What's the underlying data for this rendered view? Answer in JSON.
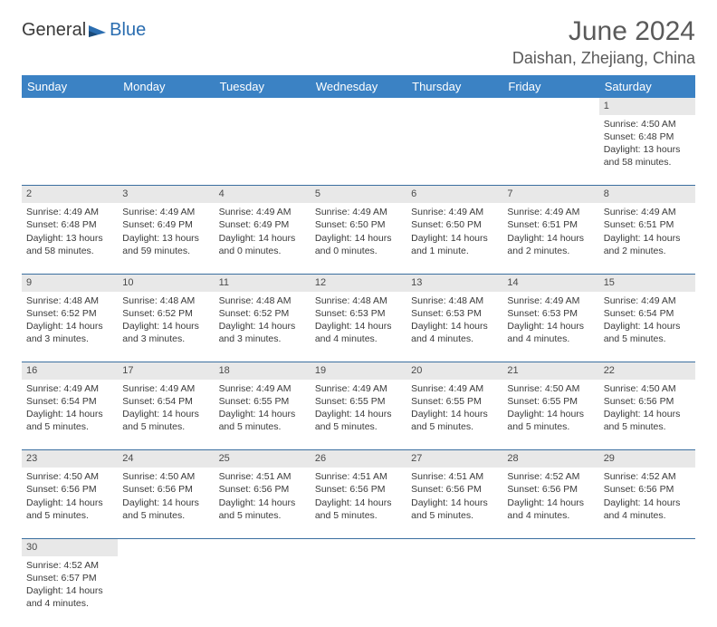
{
  "brand": {
    "name1": "General",
    "name2": "Blue"
  },
  "title": {
    "month_year": "June 2024",
    "location": "Daishan, Zhejiang, China"
  },
  "colors": {
    "header_bg": "#3b82c4",
    "header_text": "#ffffff",
    "daynum_bg": "#e8e8e8",
    "border": "#3b6fa0",
    "text": "#3a3a3a",
    "brand_blue": "#2a6db0"
  },
  "weekdays": [
    "Sunday",
    "Monday",
    "Tuesday",
    "Wednesday",
    "Thursday",
    "Friday",
    "Saturday"
  ],
  "weeks": [
    [
      null,
      null,
      null,
      null,
      null,
      null,
      {
        "n": "1",
        "sr": "4:50 AM",
        "ss": "6:48 PM",
        "dl": "13 hours and 58 minutes."
      }
    ],
    [
      {
        "n": "2",
        "sr": "4:49 AM",
        "ss": "6:48 PM",
        "dl": "13 hours and 58 minutes."
      },
      {
        "n": "3",
        "sr": "4:49 AM",
        "ss": "6:49 PM",
        "dl": "13 hours and 59 minutes."
      },
      {
        "n": "4",
        "sr": "4:49 AM",
        "ss": "6:49 PM",
        "dl": "14 hours and 0 minutes."
      },
      {
        "n": "5",
        "sr": "4:49 AM",
        "ss": "6:50 PM",
        "dl": "14 hours and 0 minutes."
      },
      {
        "n": "6",
        "sr": "4:49 AM",
        "ss": "6:50 PM",
        "dl": "14 hours and 1 minute."
      },
      {
        "n": "7",
        "sr": "4:49 AM",
        "ss": "6:51 PM",
        "dl": "14 hours and 2 minutes."
      },
      {
        "n": "8",
        "sr": "4:49 AM",
        "ss": "6:51 PM",
        "dl": "14 hours and 2 minutes."
      }
    ],
    [
      {
        "n": "9",
        "sr": "4:48 AM",
        "ss": "6:52 PM",
        "dl": "14 hours and 3 minutes."
      },
      {
        "n": "10",
        "sr": "4:48 AM",
        "ss": "6:52 PM",
        "dl": "14 hours and 3 minutes."
      },
      {
        "n": "11",
        "sr": "4:48 AM",
        "ss": "6:52 PM",
        "dl": "14 hours and 3 minutes."
      },
      {
        "n": "12",
        "sr": "4:48 AM",
        "ss": "6:53 PM",
        "dl": "14 hours and 4 minutes."
      },
      {
        "n": "13",
        "sr": "4:48 AM",
        "ss": "6:53 PM",
        "dl": "14 hours and 4 minutes."
      },
      {
        "n": "14",
        "sr": "4:49 AM",
        "ss": "6:53 PM",
        "dl": "14 hours and 4 minutes."
      },
      {
        "n": "15",
        "sr": "4:49 AM",
        "ss": "6:54 PM",
        "dl": "14 hours and 5 minutes."
      }
    ],
    [
      {
        "n": "16",
        "sr": "4:49 AM",
        "ss": "6:54 PM",
        "dl": "14 hours and 5 minutes."
      },
      {
        "n": "17",
        "sr": "4:49 AM",
        "ss": "6:54 PM",
        "dl": "14 hours and 5 minutes."
      },
      {
        "n": "18",
        "sr": "4:49 AM",
        "ss": "6:55 PM",
        "dl": "14 hours and 5 minutes."
      },
      {
        "n": "19",
        "sr": "4:49 AM",
        "ss": "6:55 PM",
        "dl": "14 hours and 5 minutes."
      },
      {
        "n": "20",
        "sr": "4:49 AM",
        "ss": "6:55 PM",
        "dl": "14 hours and 5 minutes."
      },
      {
        "n": "21",
        "sr": "4:50 AM",
        "ss": "6:55 PM",
        "dl": "14 hours and 5 minutes."
      },
      {
        "n": "22",
        "sr": "4:50 AM",
        "ss": "6:56 PM",
        "dl": "14 hours and 5 minutes."
      }
    ],
    [
      {
        "n": "23",
        "sr": "4:50 AM",
        "ss": "6:56 PM",
        "dl": "14 hours and 5 minutes."
      },
      {
        "n": "24",
        "sr": "4:50 AM",
        "ss": "6:56 PM",
        "dl": "14 hours and 5 minutes."
      },
      {
        "n": "25",
        "sr": "4:51 AM",
        "ss": "6:56 PM",
        "dl": "14 hours and 5 minutes."
      },
      {
        "n": "26",
        "sr": "4:51 AM",
        "ss": "6:56 PM",
        "dl": "14 hours and 5 minutes."
      },
      {
        "n": "27",
        "sr": "4:51 AM",
        "ss": "6:56 PM",
        "dl": "14 hours and 5 minutes."
      },
      {
        "n": "28",
        "sr": "4:52 AM",
        "ss": "6:56 PM",
        "dl": "14 hours and 4 minutes."
      },
      {
        "n": "29",
        "sr": "4:52 AM",
        "ss": "6:56 PM",
        "dl": "14 hours and 4 minutes."
      }
    ],
    [
      {
        "n": "30",
        "sr": "4:52 AM",
        "ss": "6:57 PM",
        "dl": "14 hours and 4 minutes."
      },
      null,
      null,
      null,
      null,
      null,
      null
    ]
  ],
  "labels": {
    "sunrise": "Sunrise:",
    "sunset": "Sunset:",
    "daylight": "Daylight:"
  }
}
